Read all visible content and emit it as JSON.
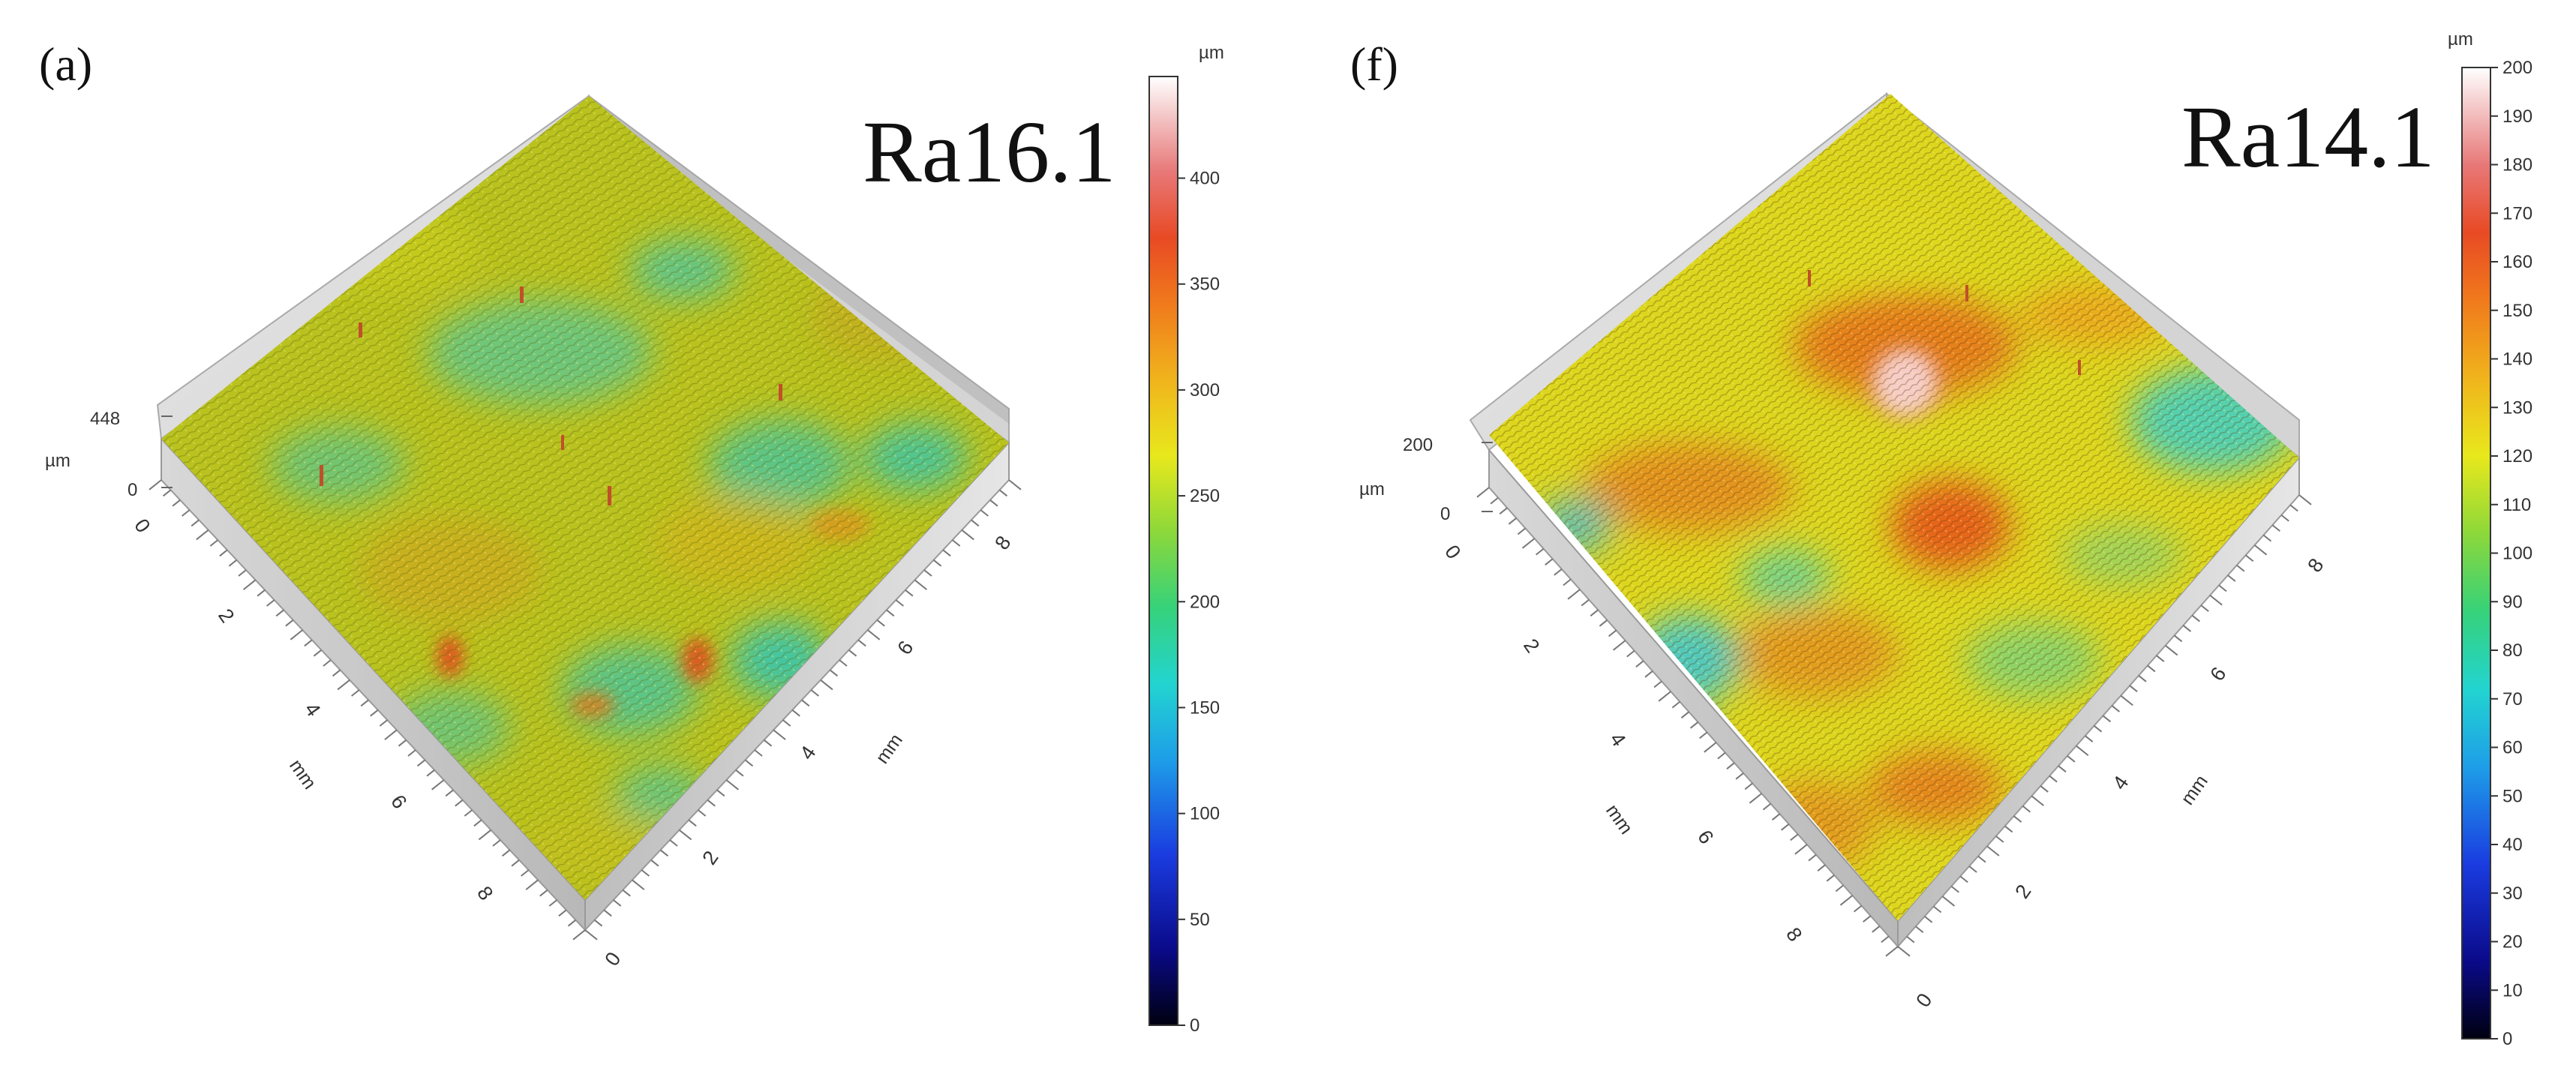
{
  "chart_data": [
    {
      "type": "surface3d",
      "panel": "(a)",
      "annotation": "Ra16.1",
      "x_axis": {
        "label": "mm",
        "ticks": [
          "0",
          "2",
          "4",
          "6",
          "8"
        ],
        "range": [
          0,
          9
        ]
      },
      "y_axis": {
        "label": "mm",
        "ticks": [
          "0",
          "2",
          "4",
          "6",
          "8"
        ],
        "range": [
          0,
          9
        ]
      },
      "z_axis": {
        "unit": "µm",
        "ticks": [
          "0",
          "448"
        ],
        "range": [
          0,
          448
        ]
      },
      "colorbar": {
        "unit": "µm",
        "min": 0,
        "max": 448,
        "ticks": [
          "0",
          "50",
          "100",
          "150",
          "200",
          "250",
          "300",
          "350",
          "400"
        ]
      },
      "dominant_colors": [
        "#b8c41e",
        "#c8c41c",
        "#3cc8a8",
        "#e07020"
      ]
    },
    {
      "type": "surface3d",
      "panel": "(f)",
      "annotation": "Ra14.1",
      "x_axis": {
        "label": "mm",
        "ticks": [
          "0",
          "2",
          "4",
          "6",
          "8"
        ],
        "range": [
          0,
          9
        ]
      },
      "y_axis": {
        "label": "mm",
        "ticks": [
          "2",
          "4",
          "6",
          "8"
        ],
        "range": [
          0,
          9
        ]
      },
      "z_axis": {
        "unit": "µm",
        "ticks": [
          "0",
          "200"
        ],
        "range": [
          0,
          200
        ]
      },
      "colorbar": {
        "unit": "µm",
        "min": 0,
        "max": 200,
        "ticks": [
          "0",
          "10",
          "20",
          "30",
          "40",
          "50",
          "60",
          "70",
          "80",
          "90",
          "100",
          "110",
          "120",
          "130",
          "140",
          "150",
          "160",
          "170",
          "180",
          "190",
          "200"
        ]
      },
      "dominant_colors": [
        "#e8d81c",
        "#e86a1c",
        "#3cd2c0",
        "#2a78e0"
      ]
    }
  ]
}
